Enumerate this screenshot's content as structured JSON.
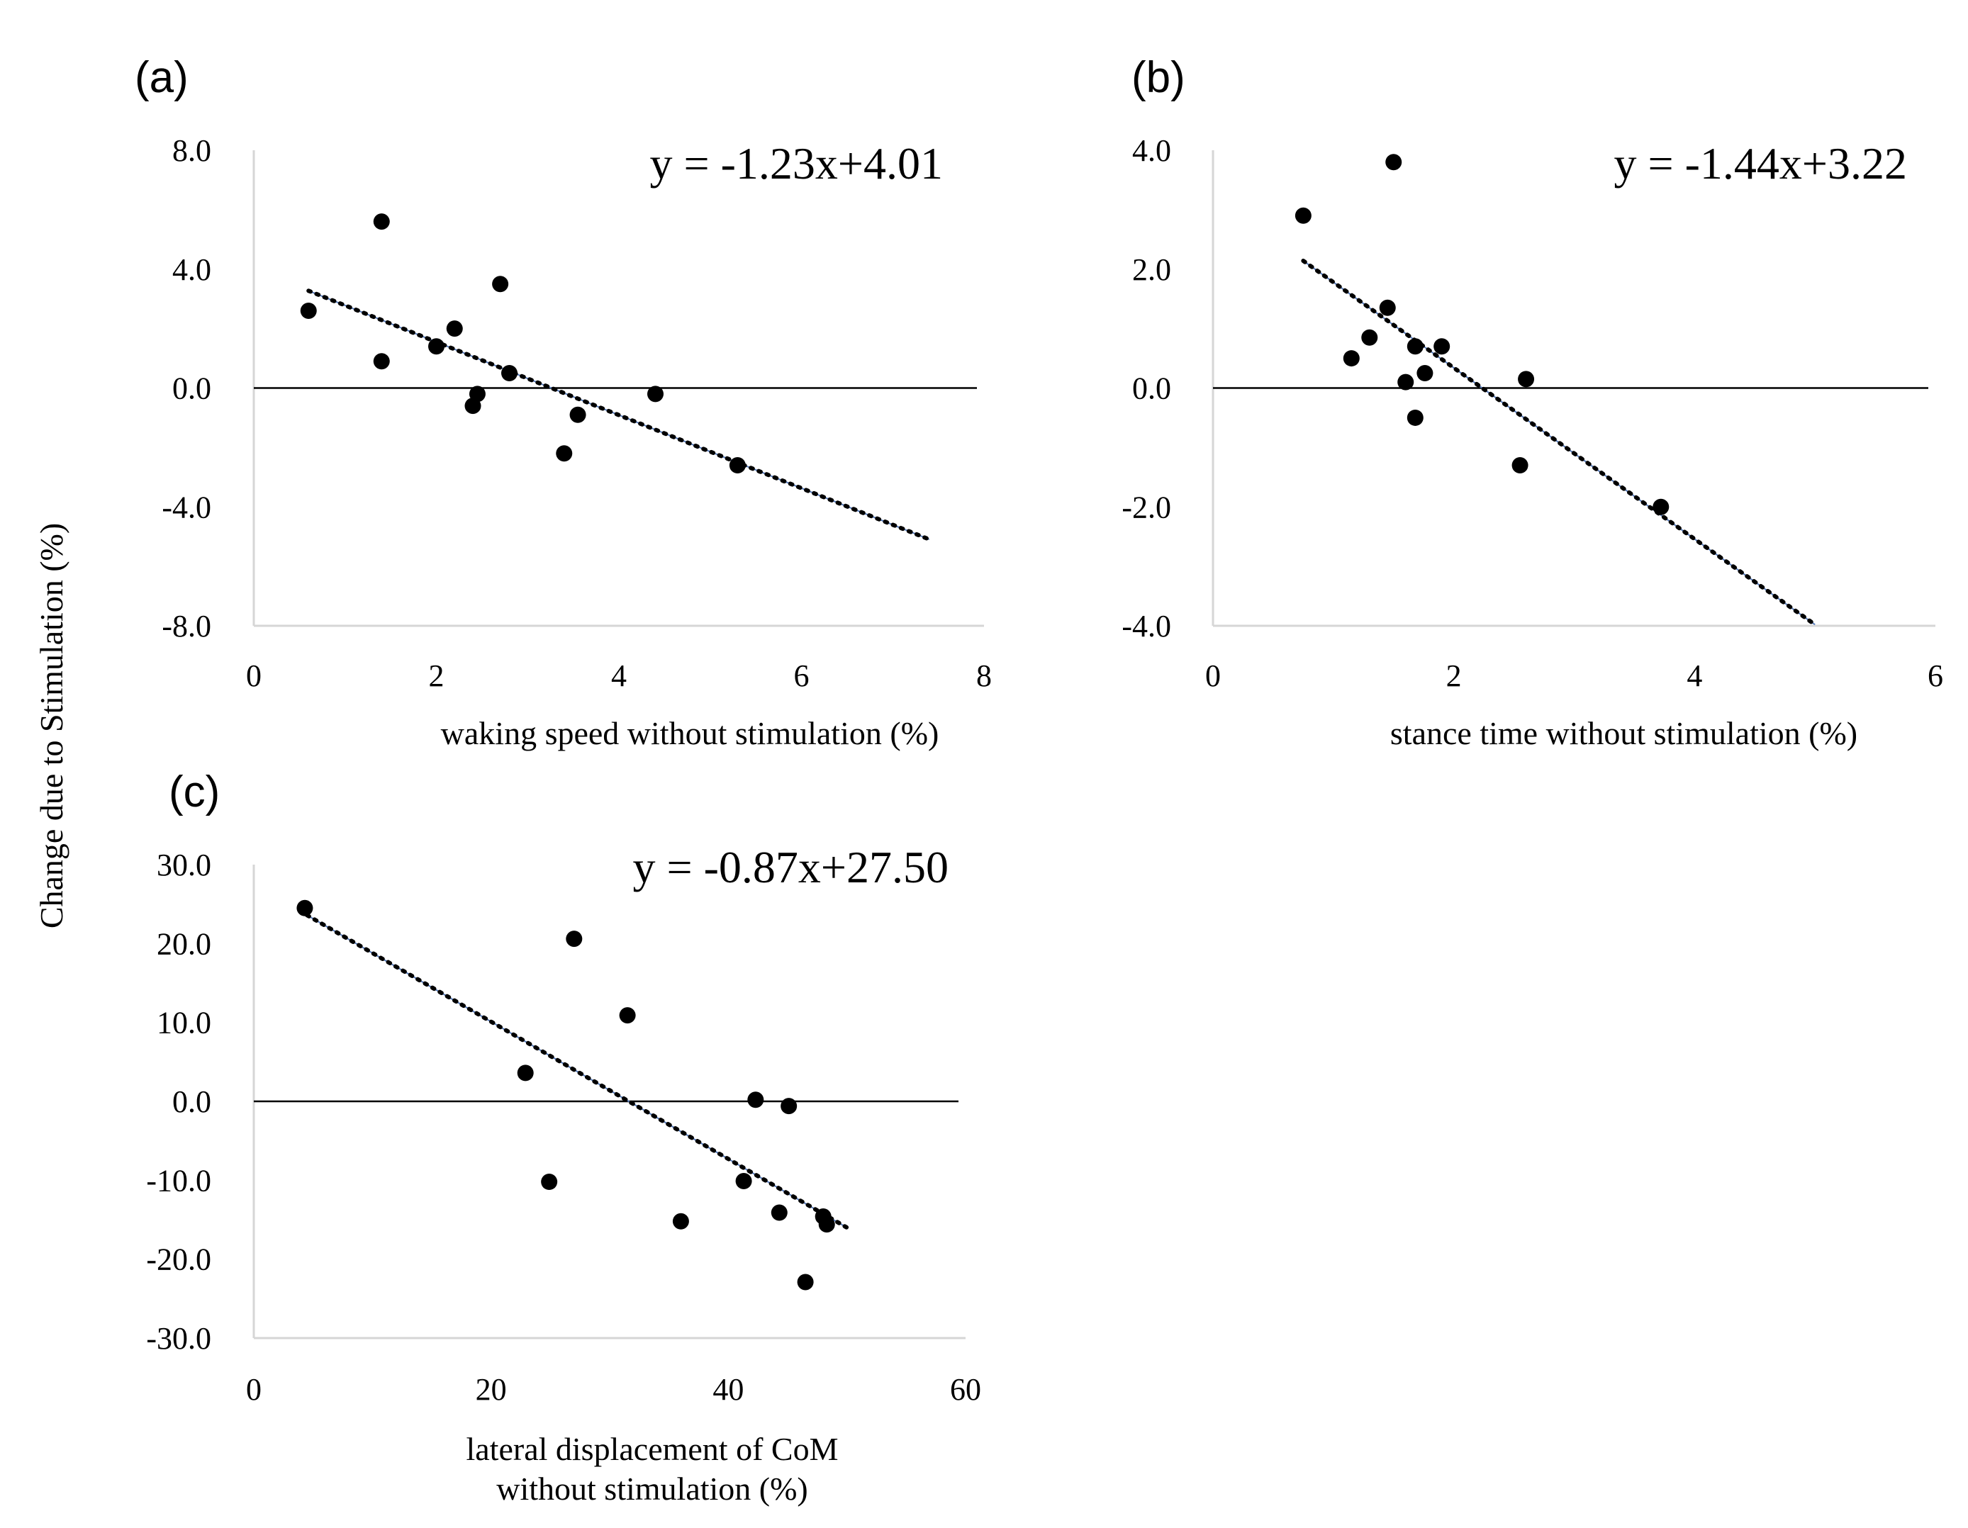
{
  "figure": {
    "shared_ylabel": "Change due to Stimulation (%)"
  },
  "chart_data": [
    {
      "type": "scatter",
      "panel": "(a)",
      "xlabel": "waking speed without stimulation (%)",
      "ylabel": "Change due to Stimulation (%)",
      "equation": "y = -1.23x+4.01",
      "xlim": [
        0,
        8
      ],
      "ylim": [
        -8,
        8
      ],
      "xticks": [
        0,
        2,
        4,
        6,
        8
      ],
      "xtick_labels": [
        "0",
        "2",
        "4",
        "6",
        "8"
      ],
      "yticks": [
        8,
        4,
        0,
        -4,
        -8
      ],
      "ytick_labels": [
        "8.0",
        "4.0",
        "0.0",
        "-4.0",
        "-8.0"
      ],
      "trend": {
        "slope": -1.23,
        "intercept": 4.01,
        "x_range": [
          0.6,
          7.4
        ]
      },
      "points": [
        {
          "x": 0.6,
          "y": 2.6
        },
        {
          "x": 1.4,
          "y": 5.6
        },
        {
          "x": 1.4,
          "y": 0.9
        },
        {
          "x": 2.0,
          "y": 1.4
        },
        {
          "x": 2.2,
          "y": 2.0
        },
        {
          "x": 2.4,
          "y": -0.6
        },
        {
          "x": 2.45,
          "y": -0.2
        },
        {
          "x": 2.7,
          "y": 3.5
        },
        {
          "x": 2.8,
          "y": 0.5
        },
        {
          "x": 3.4,
          "y": -2.2
        },
        {
          "x": 3.55,
          "y": -0.9
        },
        {
          "x": 4.4,
          "y": -0.2
        },
        {
          "x": 5.3,
          "y": -2.6
        }
      ]
    },
    {
      "type": "scatter",
      "panel": "(b)",
      "xlabel": "stance time without stimulation (%)",
      "ylabel": "Change due to Stimulation (%)",
      "equation": "y = -1.44x+3.22",
      "xlim": [
        0,
        6
      ],
      "ylim": [
        -4,
        4
      ],
      "xticks": [
        0,
        2,
        4,
        6
      ],
      "xtick_labels": [
        "0",
        "2",
        "4",
        "6"
      ],
      "yticks": [
        4,
        2,
        0,
        -2,
        -4
      ],
      "ytick_labels": [
        "4.0",
        "2.0",
        "0.0",
        "-2.0",
        "-4.0"
      ],
      "trend": {
        "slope": -1.44,
        "intercept": 3.22,
        "x_range": [
          0.75,
          5.0
        ]
      },
      "points": [
        {
          "x": 0.75,
          "y": 2.9
        },
        {
          "x": 1.5,
          "y": 3.8
        },
        {
          "x": 1.15,
          "y": 0.5
        },
        {
          "x": 1.3,
          "y": 0.85
        },
        {
          "x": 1.45,
          "y": 1.35
        },
        {
          "x": 1.6,
          "y": 0.1
        },
        {
          "x": 1.68,
          "y": 0.7
        },
        {
          "x": 1.68,
          "y": -0.5
        },
        {
          "x": 1.76,
          "y": 0.25
        },
        {
          "x": 1.9,
          "y": 0.7
        },
        {
          "x": 2.55,
          "y": -1.3
        },
        {
          "x": 2.6,
          "y": 0.15
        },
        {
          "x": 3.72,
          "y": -2.0
        }
      ]
    },
    {
      "type": "scatter",
      "panel": "(c)",
      "xlabel": "lateral displacement of CoM without stimulation (%)",
      "xlabel_lines": [
        "lateral displacement of CoM",
        "without stimulation (%)"
      ],
      "ylabel": "Change due to Stimulation (%)",
      "equation": "y = -0.87x+27.50",
      "xlim": [
        0,
        60
      ],
      "ylim": [
        -30,
        30
      ],
      "xticks": [
        0,
        20,
        40,
        60
      ],
      "xtick_labels": [
        "0",
        "20",
        "40",
        "60"
      ],
      "yticks": [
        30,
        20,
        10,
        0,
        -10,
        -20,
        -30
      ],
      "ytick_labels": [
        "30.0",
        "20.0",
        "10.0",
        "0.0",
        "-10.0",
        "-20.0",
        "-30.0"
      ],
      "trend": {
        "slope": -0.87,
        "intercept": 27.5,
        "x_range": [
          4.5,
          50
        ]
      },
      "points": [
        {
          "x": 4.3,
          "y": 24.5
        },
        {
          "x": 22.9,
          "y": 3.6
        },
        {
          "x": 24.9,
          "y": -10.2
        },
        {
          "x": 27.0,
          "y": 20.6
        },
        {
          "x": 31.5,
          "y": 10.9
        },
        {
          "x": 36.0,
          "y": -15.2
        },
        {
          "x": 41.3,
          "y": -10.1
        },
        {
          "x": 42.3,
          "y": 0.2
        },
        {
          "x": 44.3,
          "y": -14.1
        },
        {
          "x": 45.1,
          "y": -0.6
        },
        {
          "x": 46.5,
          "y": -22.9
        },
        {
          "x": 48.0,
          "y": -14.6
        },
        {
          "x": 48.3,
          "y": -15.6
        }
      ]
    }
  ]
}
